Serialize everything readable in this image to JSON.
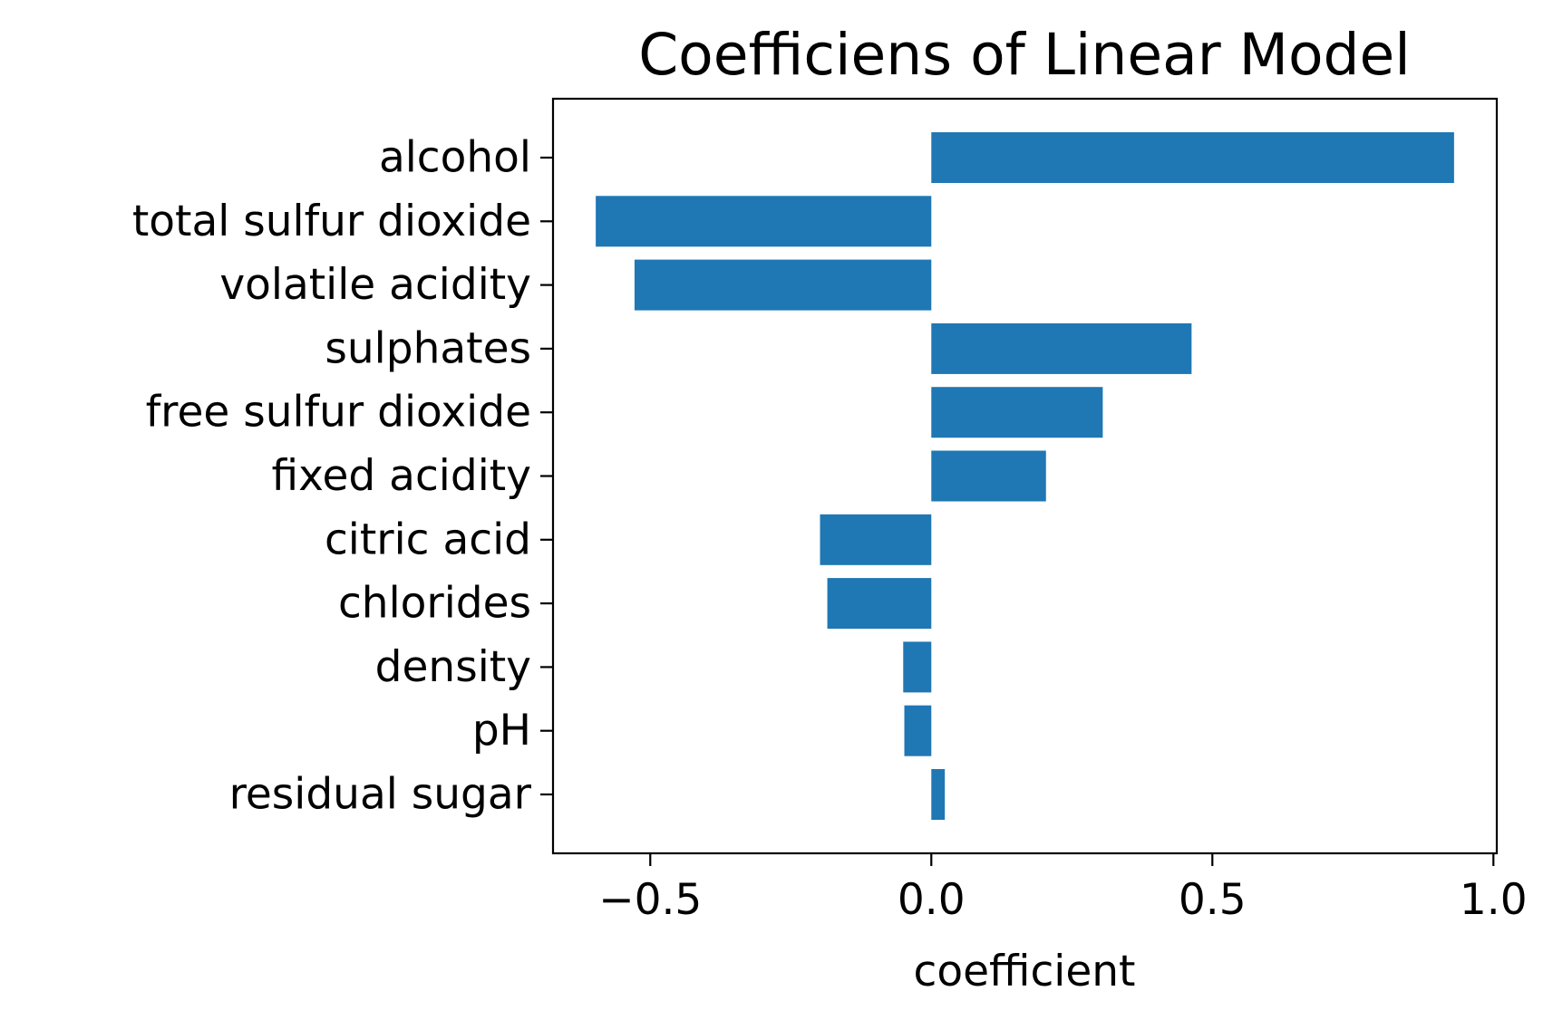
{
  "chart_data": {
    "type": "bar",
    "orientation": "horizontal",
    "title": "Coefficiens of Linear Model",
    "xlabel": "coefficient",
    "ylabel": "",
    "categories": [
      "alcohol",
      "total sulfur dioxide",
      "volatile acidity",
      "sulphates",
      "free sulfur dioxide",
      "fixed acidity",
      "citric acid",
      "chlorides",
      "density",
      "pH",
      "residual sugar"
    ],
    "values": [
      0.93,
      -0.597,
      -0.528,
      0.463,
      0.305,
      0.204,
      -0.198,
      -0.185,
      -0.05,
      -0.048,
      0.024
    ],
    "xlim": [
      -0.673,
      1.006
    ],
    "xticks": [
      -0.5,
      0.0,
      0.5,
      1.0
    ],
    "xtick_labels": [
      "−0.5",
      "0.0",
      "0.5",
      "1.0"
    ],
    "grid": false,
    "legend": "none",
    "bar_color": "#1f77b4"
  }
}
